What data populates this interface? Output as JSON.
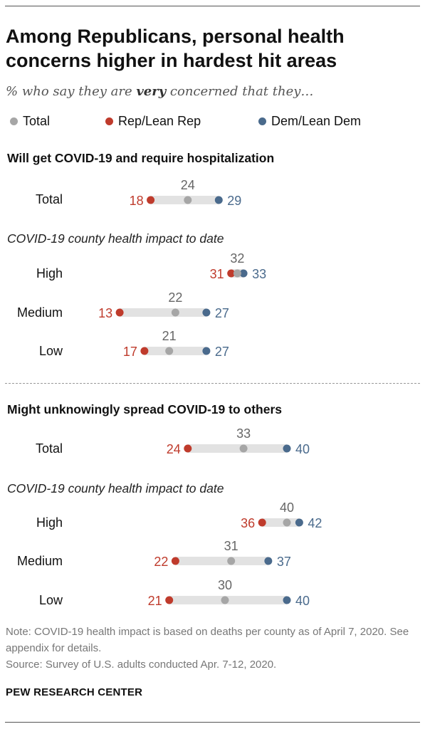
{
  "title": "Among Republicans, personal health concerns higher in hardest hit areas",
  "subtitle": {
    "before": "% who say they are ",
    "emphasis": "very",
    "after": " concerned that they…"
  },
  "colors": {
    "total": "#a6a6a6",
    "rep": "#bf3b2c",
    "dem": "#4a6a8c",
    "bar": "#e2e2e2",
    "total_label": "#666666"
  },
  "chart_data": {
    "type": "dot",
    "legend": [
      "Total",
      "Rep/Lean Rep",
      "Dem/Lean Dem"
    ],
    "series_names": [
      "Total",
      "Rep/Lean Rep",
      "Dem/Lean Dem"
    ],
    "sections": [
      {
        "title": "Will get COVID-19 and require hospitalization",
        "subheading": "COVID-19 county health impact to date",
        "overall": {
          "label": "Total",
          "total": 24,
          "rep": 18,
          "dem": 29
        },
        "rows": [
          {
            "label": "High",
            "total": 32,
            "rep": 31,
            "dem": 33
          },
          {
            "label": "Medium",
            "total": 22,
            "rep": 13,
            "dem": 27
          },
          {
            "label": "Low",
            "total": 21,
            "rep": 17,
            "dem": 27
          }
        ]
      },
      {
        "title": "Might unknowingly spread COVID-19 to others",
        "subheading": "COVID-19 county health impact to date",
        "overall": {
          "label": "Total",
          "total": 33,
          "rep": 24,
          "dem": 40
        },
        "rows": [
          {
            "label": "High",
            "total": 40,
            "rep": 36,
            "dem": 42
          },
          {
            "label": "Medium",
            "total": 31,
            "rep": 22,
            "dem": 37
          },
          {
            "label": "Low",
            "total": 30,
            "rep": 21,
            "dem": 40
          }
        ]
      }
    ]
  },
  "note": "Note: COVID-19 health impact is based on deaths per county as of April 7, 2020. See appendix for details.",
  "source": "Source: Survey of U.S. adults conducted Apr. 7-12, 2020.",
  "brand": "PEW RESEARCH CENTER"
}
